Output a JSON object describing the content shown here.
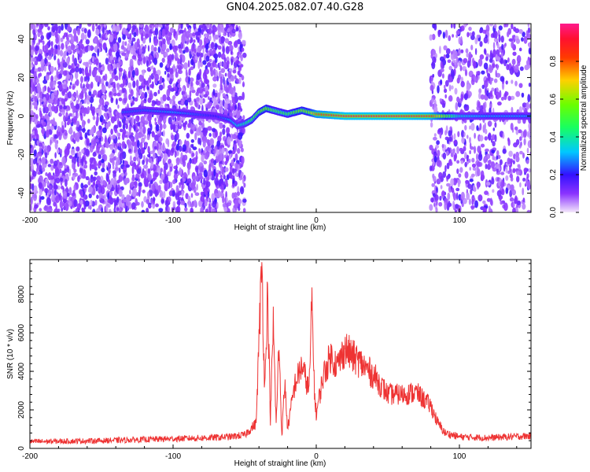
{
  "page_title": "GN04.2025.082.07.40.G28",
  "chart_data": [
    {
      "type": "heatmap",
      "title": "GN04.2025.082.07.40.G28",
      "xlabel": "Height of straight line (km)",
      "ylabel": "Frequency (Hz)",
      "xlim": [
        -200,
        150
      ],
      "ylim": [
        -50,
        48
      ],
      "xticks": [
        -200,
        -100,
        0,
        100
      ],
      "yticks": [
        -40,
        -20,
        0,
        20,
        40
      ],
      "colorbar": {
        "label": "Normalized spectral amplitude",
        "range": [
          0.0,
          1.0
        ],
        "ticks": [
          0.0,
          0.2,
          0.4,
          0.6,
          0.8
        ],
        "colors": [
          "#f4e8fb",
          "#6a00ff",
          "#1a1aff",
          "#00e5ff",
          "#18ff18",
          "#ffd000",
          "#ff7a00",
          "#ff1030",
          "#ff1a8c"
        ]
      },
      "noise_region_left": [
        -200,
        -50
      ],
      "noise_region_right": [
        80,
        150
      ],
      "signal_track": {
        "x": [
          -135,
          -120,
          -100,
          -85,
          -70,
          -60,
          -55,
          -50,
          -45,
          -40,
          -35,
          -30,
          -25,
          -20,
          -15,
          -10,
          -5,
          0,
          20,
          40,
          60,
          80,
          100,
          120,
          150
        ],
        "y": [
          2,
          3,
          2,
          1,
          0,
          -2,
          -5,
          -4,
          -2,
          2,
          4,
          3,
          2,
          1,
          2,
          3,
          2,
          1,
          0,
          0,
          0,
          0,
          0,
          0,
          0
        ],
        "amplitude": [
          0.25,
          0.25,
          0.3,
          0.25,
          0.2,
          0.3,
          0.35,
          0.4,
          0.5,
          0.55,
          0.6,
          0.5,
          0.5,
          0.5,
          0.55,
          0.6,
          0.6,
          0.8,
          0.9,
          0.9,
          0.9,
          0.85,
          0.35,
          0.3,
          0.3
        ]
      }
    },
    {
      "type": "line",
      "xlabel": "Height of straight line (km)",
      "ylabel": "SNR (10 * v/v)",
      "xlim": [
        -200,
        150
      ],
      "ylim": [
        0,
        9800
      ],
      "xticks": [
        -200,
        -100,
        0,
        100
      ],
      "yticks": [
        0,
        2000,
        4000,
        6000,
        8000
      ],
      "color": "#ee3333",
      "x": [
        -200,
        -150,
        -100,
        -75,
        -60,
        -50,
        -42,
        -38,
        -36,
        -34,
        -32,
        -30,
        -28,
        -26,
        -24,
        -22,
        -20,
        -15,
        -10,
        -5,
        -3,
        -1,
        0,
        5,
        10,
        15,
        20,
        25,
        30,
        40,
        50,
        60,
        70,
        80,
        85,
        90,
        100,
        120,
        150
      ],
      "y": [
        350,
        400,
        500,
        550,
        600,
        700,
        1300,
        9700,
        3000,
        8200,
        1500,
        6500,
        1200,
        5500,
        600,
        3500,
        1000,
        3300,
        4300,
        3000,
        7600,
        2500,
        1800,
        3800,
        4800,
        4300,
        5200,
        4800,
        4500,
        3800,
        2800,
        2800,
        2900,
        2200,
        1300,
        800,
        600,
        550,
        650
      ]
    }
  ]
}
